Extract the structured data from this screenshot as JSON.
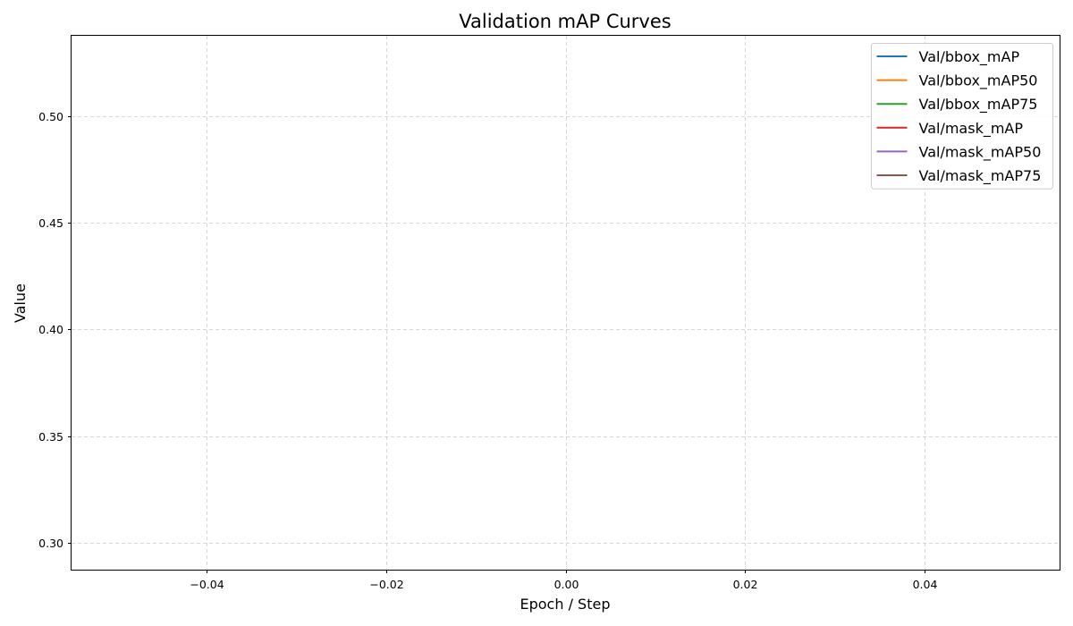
{
  "chart_data": {
    "type": "line",
    "title": "Validation mAP Curves",
    "xlabel": "Epoch / Step",
    "ylabel": "Value",
    "xlim": [
      -0.055,
      0.055
    ],
    "ylim": [
      0.2875,
      0.5375
    ],
    "xticks": [
      -0.04,
      -0.02,
      0.0,
      0.02,
      0.04
    ],
    "xtick_labels": [
      "−0.04",
      "−0.02",
      "0.00",
      "0.02",
      "0.04"
    ],
    "yticks": [
      0.3,
      0.35,
      0.4,
      0.45,
      0.5
    ],
    "ytick_labels": [
      "0.30",
      "0.35",
      "0.40",
      "0.45",
      "0.50"
    ],
    "grid": true,
    "legend_position": "top-right",
    "series": [
      {
        "name": "Val/bbox_mAP",
        "color": "#1f77b4",
        "x": [],
        "y": []
      },
      {
        "name": "Val/bbox_mAP50",
        "color": "#ff7f0e",
        "x": [],
        "y": []
      },
      {
        "name": "Val/bbox_mAP75",
        "color": "#2ca02c",
        "x": [],
        "y": []
      },
      {
        "name": "Val/mask_mAP",
        "color": "#d62728",
        "x": [],
        "y": []
      },
      {
        "name": "Val/mask_mAP50",
        "color": "#9467bd",
        "x": [],
        "y": []
      },
      {
        "name": "Val/mask_mAP75",
        "color": "#8c564b",
        "x": [],
        "y": []
      }
    ]
  }
}
